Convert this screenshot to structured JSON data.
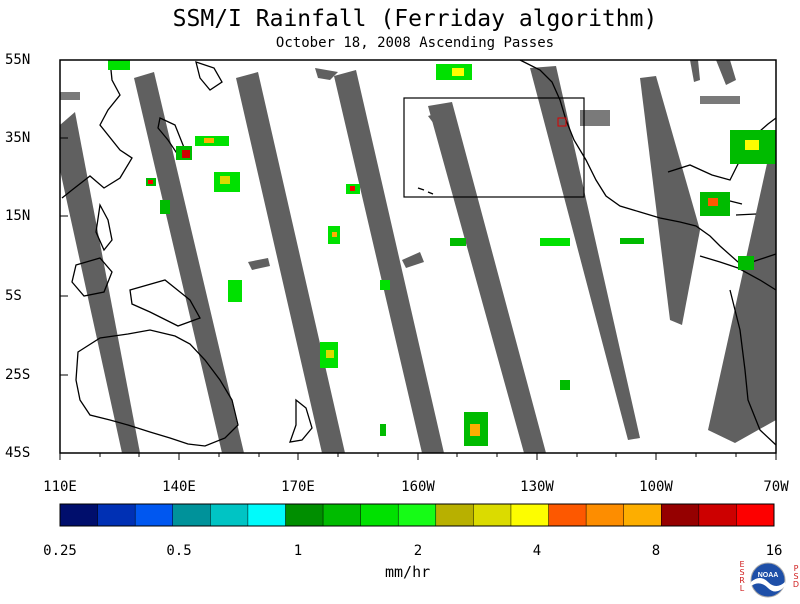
{
  "title": "SSM/I Rainfall (Ferriday algorithm)",
  "subtitle": "October 18, 2008  Ascending Passes",
  "lat_labels": [
    "55N",
    "35N",
    "15N",
    "5S",
    "25S",
    "45S"
  ],
  "lon_labels": [
    "110E",
    "140E",
    "170E",
    "160W",
    "130W",
    "100W",
    "70W"
  ],
  "colorbar": {
    "colors": [
      "#000e6c",
      "#0030b4",
      "#0057f0",
      "#00929a",
      "#00c4c4",
      "#00fbfb",
      "#008e00",
      "#00bb00",
      "#00e100",
      "#16fc16",
      "#b8b000",
      "#dbdb00",
      "#fdfd00",
      "#fd5800",
      "#fd8d00",
      "#fdae00",
      "#950000",
      "#cd0000",
      "#fd0000"
    ],
    "tick_labels": [
      "0.25",
      "0.5",
      "1",
      "2",
      "4",
      "8",
      "16"
    ],
    "units": "mm/hr"
  },
  "logo": {
    "text": "NOAA",
    "left_letters": "ESRL",
    "right_letters": "PSD"
  },
  "swath_color": "#606060",
  "land_color": "#000000"
}
